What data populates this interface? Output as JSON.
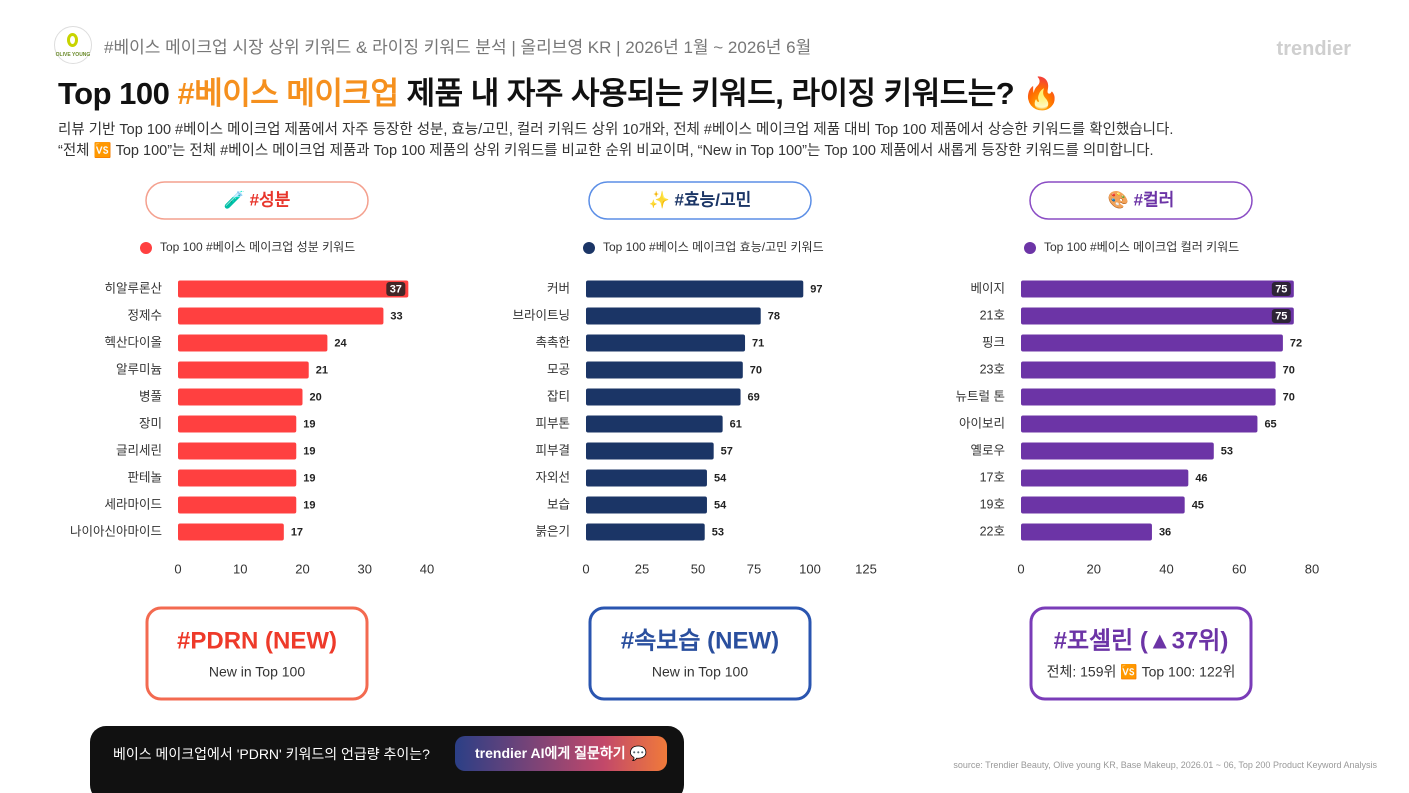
{
  "header": {
    "logo": "OLIVE YOUNG",
    "subtitle": "#베이스 메이크업 시장 상위 키워드 & 라이징 키워드 분석 | 올리브영 KR | 2026년 1월 ~ 2026년 6월",
    "brand": "trendier",
    "title_start": "Top 100 ",
    "title_highlight": "#베이스 메이크업",
    "title_end": " 제품 내 자주 사용되는 키워드, 라이징 키워드는? 🔥",
    "description": [
      "리뷰 기반 Top 100 #베이스 메이크업 제품에서 자주 등장한 성분, 효능/고민, 컬러 키워드 상위 10개와, 전체 #베이스 메이크업 제품 대비 Top 100 제품에서 상승한 키워드를 확인했습니다.",
      "“전체 🆚 Top 100”는 전체 #베이스 메이크업 제품과 Top 100 제품의 상위 키워드를 비교한 순위 비교이며, “New in Top 100”는 Top 100 제품에서 새롭게 등장한 키워드를 의미합니다."
    ]
  },
  "chart_data": [
    {
      "type": "bar",
      "orientation": "horizontal",
      "title": "🧪 #성분",
      "legend": "Top 100 #베이스 메이크업 성분 키워드",
      "color": "#ff4040",
      "categories": [
        "히알루론산",
        "정제수",
        "헥산다이올",
        "알루미늄",
        "병풀",
        "장미",
        "글리세린",
        "판테놀",
        "세라마이드",
        "나이아신아마이드"
      ],
      "values": [
        37,
        33,
        24,
        21,
        20,
        19,
        19,
        19,
        19,
        17
      ],
      "xlim": [
        0,
        40
      ],
      "xticks": [
        0,
        10,
        20,
        30,
        40
      ],
      "highlight": {
        "keyword": "#PDRN (NEW)",
        "note": "New in Top 100"
      }
    },
    {
      "type": "bar",
      "orientation": "horizontal",
      "title": "✨ #효능/고민",
      "legend": "Top 100 #베이스 메이크업 효능/고민 키워드",
      "color": "#1b3566",
      "categories": [
        "커버",
        "브라이트닝",
        "촉촉한",
        "모공",
        "잡티",
        "피부톤",
        "피부결",
        "자외선",
        "보습",
        "붉은기"
      ],
      "values": [
        97,
        78,
        71,
        70,
        69,
        61,
        57,
        54,
        54,
        53
      ],
      "xlim": [
        0,
        125
      ],
      "xticks": [
        0,
        25,
        50,
        75,
        100,
        125
      ],
      "highlight": {
        "keyword": "#속보습 (NEW)",
        "note": "New in Top 100"
      }
    },
    {
      "type": "bar",
      "orientation": "horizontal",
      "title": "🎨 #컬러",
      "legend": "Top 100 #베이스 메이크업 컬러 키워드",
      "color": "#6c34a6",
      "categories": [
        "베이지",
        "21호",
        "핑크",
        "23호",
        "뉴트럴 톤",
        "아이보리",
        "옐로우",
        "17호",
        "19호",
        "22호"
      ],
      "values": [
        75,
        75,
        72,
        70,
        70,
        65,
        53,
        46,
        45,
        36
      ],
      "xlim": [
        0,
        80
      ],
      "xticks": [
        0,
        20,
        40,
        60,
        80
      ],
      "highlight": {
        "keyword": "#포셀린 (▲37위)",
        "note": "전체: 159위 🆚 Top 100: 122위"
      }
    }
  ],
  "footer": {
    "question": "베이스 메이크업에서 'PDRN' 키워드의 언급량 추이는?",
    "button": "trendier AI에게 질문하기 💬",
    "source": "source: Trendier Beauty, Olive young KR, Base Makeup, 2026.01 ~ 06, Top 200 Product Keyword Analysis"
  }
}
